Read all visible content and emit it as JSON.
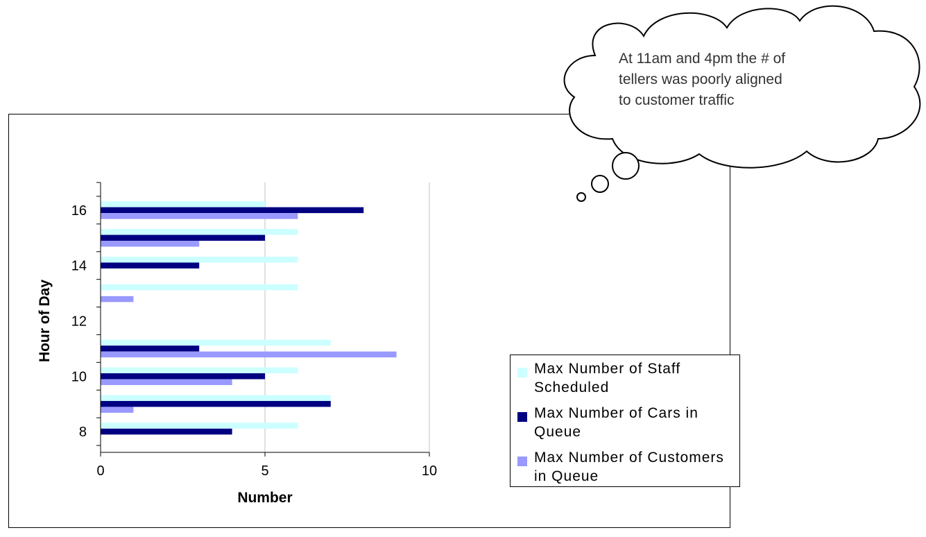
{
  "callout": {
    "lines": [
      "At 11am and 4pm the # of",
      "tellers was poorly aligned",
      "to customer traffic"
    ]
  },
  "chart_data": {
    "type": "bar",
    "orientation": "horizontal",
    "categories": [
      8,
      9,
      10,
      11,
      12,
      13,
      14,
      15,
      16
    ],
    "y_tick_labels": [
      "8",
      "10",
      "12",
      "14",
      "16"
    ],
    "x_tick_labels": [
      "0",
      "5",
      "10"
    ],
    "xlim": [
      0,
      10
    ],
    "xlabel": "Number",
    "ylabel": "Hour of Day",
    "grid": "vertical",
    "legend_position": "right",
    "series": [
      {
        "name": "Max Number of Staff Scheduled",
        "color": "#ccffff",
        "values": [
          6,
          7,
          6,
          7,
          0,
          6,
          6,
          6,
          5
        ]
      },
      {
        "name": "Max Number of Cars in Queue",
        "color": "#000080",
        "values": [
          4,
          7,
          5,
          3,
          0,
          0,
          3,
          5,
          8
        ]
      },
      {
        "name": "Max Number of Customers in Queue",
        "color": "#9999ff",
        "values": [
          0,
          1,
          4,
          9,
          0,
          1,
          0,
          3,
          6
        ]
      }
    ]
  }
}
